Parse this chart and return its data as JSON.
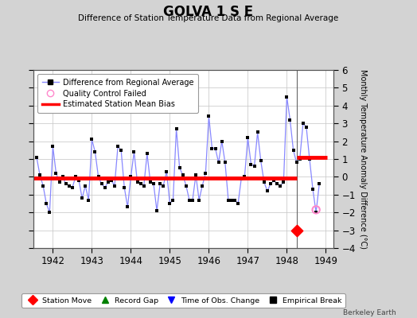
{
  "title": "GOLVA 1 S E",
  "subtitle": "Difference of Station Temperature Data from Regional Average",
  "ylabel": "Monthly Temperature Anomaly Difference (°C)",
  "xlabel_years": [
    1942,
    1943,
    1944,
    1945,
    1946,
    1947,
    1948,
    1949
  ],
  "xlim": [
    1941.5,
    1949.2
  ],
  "ylim": [
    -4,
    6
  ],
  "yticks": [
    -4,
    -3,
    -2,
    -1,
    0,
    1,
    2,
    3,
    4,
    5,
    6
  ],
  "background_color": "#d3d3d3",
  "plot_bg_color": "#ffffff",
  "line_color": "#8888ff",
  "marker_color": "#000000",
  "bias_color": "#ff0000",
  "bias_before": -0.05,
  "bias_after": 1.1,
  "bias_break_x": 1948.25,
  "station_move_x": 1948.25,
  "station_move_y": -3.0,
  "qc_fail_x": 1948.75,
  "qc_fail_y": -1.85,
  "data_x": [
    1941.583,
    1941.667,
    1941.75,
    1941.833,
    1941.917,
    1942.0,
    1942.083,
    1942.167,
    1942.25,
    1942.333,
    1942.417,
    1942.5,
    1942.583,
    1942.667,
    1942.75,
    1942.833,
    1942.917,
    1943.0,
    1943.083,
    1943.167,
    1943.25,
    1943.333,
    1943.417,
    1943.5,
    1943.583,
    1943.667,
    1943.75,
    1943.833,
    1943.917,
    1944.0,
    1944.083,
    1944.167,
    1944.25,
    1944.333,
    1944.417,
    1944.5,
    1944.583,
    1944.667,
    1944.75,
    1944.833,
    1944.917,
    1945.0,
    1945.083,
    1945.167,
    1945.25,
    1945.333,
    1945.417,
    1945.5,
    1945.583,
    1945.667,
    1945.75,
    1945.833,
    1945.917,
    1946.0,
    1946.083,
    1946.167,
    1946.25,
    1946.333,
    1946.417,
    1946.5,
    1946.583,
    1946.667,
    1946.75,
    1946.833,
    1946.917,
    1947.0,
    1947.083,
    1947.167,
    1947.25,
    1947.333,
    1947.417,
    1947.5,
    1947.583,
    1947.667,
    1947.75,
    1947.833,
    1947.917,
    1948.0,
    1948.083,
    1948.167,
    1948.25,
    1948.333,
    1948.417,
    1948.5,
    1948.583,
    1948.667,
    1948.75,
    1948.833
  ],
  "data_y": [
    1.1,
    0.1,
    -0.5,
    -1.5,
    -2.0,
    1.7,
    0.2,
    -0.3,
    0.0,
    -0.4,
    -0.5,
    -0.6,
    0.0,
    -0.2,
    -1.2,
    -0.5,
    -1.3,
    2.1,
    1.4,
    0.0,
    -0.4,
    -0.6,
    -0.3,
    -0.2,
    -0.5,
    1.7,
    1.5,
    -0.6,
    -1.7,
    0.0,
    1.4,
    -0.3,
    -0.4,
    -0.5,
    1.3,
    -0.3,
    -0.4,
    -1.9,
    -0.4,
    -0.5,
    0.3,
    -1.5,
    -1.3,
    2.7,
    0.5,
    0.1,
    -0.5,
    -1.3,
    -1.3,
    0.1,
    -1.3,
    -0.5,
    0.2,
    3.4,
    1.6,
    1.6,
    0.8,
    2.0,
    0.8,
    -1.3,
    -1.3,
    -1.3,
    -1.5,
    -0.1,
    0.0,
    2.2,
    0.7,
    0.6,
    2.5,
    0.9,
    -0.3,
    -0.8,
    -0.4,
    -0.2,
    -0.4,
    -0.5,
    -0.3,
    4.5,
    3.2,
    1.5,
    0.8,
    1.0,
    3.0,
    2.8,
    1.0,
    -0.7,
    -2.0,
    -0.4
  ],
  "legend_entries": [
    "Difference from Regional Average",
    "Quality Control Failed",
    "Estimated Station Mean Bias"
  ],
  "bottom_legend": [
    {
      "label": "Station Move",
      "color": "#ff0000",
      "marker": "D"
    },
    {
      "label": "Record Gap",
      "color": "#008000",
      "marker": "^"
    },
    {
      "label": "Time of Obs. Change",
      "color": "#0000ff",
      "marker": "v"
    },
    {
      "label": "Empirical Break",
      "color": "#000000",
      "marker": "s"
    }
  ]
}
